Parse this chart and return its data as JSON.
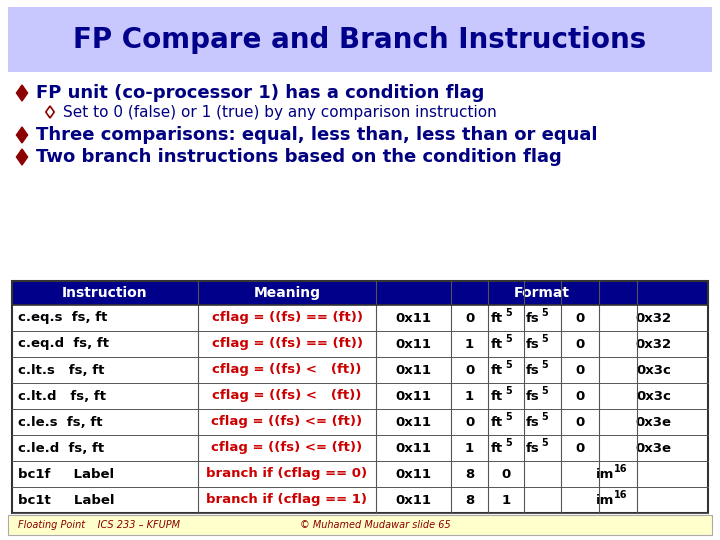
{
  "title": "FP Compare and Branch Instructions",
  "title_bg": "#c8c8ff",
  "title_color": "#00008B",
  "slide_bg": "#f0f0f0",
  "content_bg": "#ffffff",
  "footer_bg": "#ffffcc",
  "footer_text1": "Floating Point    ICS 233 – KFUPM",
  "footer_text2": "© Muhamed Mudawar slide 65",
  "bullet1": "FP unit (co-processor 1) has a condition flag",
  "bullet2": "Set to 0 (false) or 1 (true) by any comparison instruction",
  "bullet3": "Three comparisons: equal, less than, less than or equal",
  "bullet4": "Two branch instructions based on the condition flag",
  "bullet_color": "#000080",
  "table_header_bg": "#00008B",
  "table_header_fg": "#ffffff",
  "table_row_bg": "#ffffff",
  "table_border": "#444444",
  "table_meaning_color": "#cc0000",
  "table_text_color": "#000000",
  "rows": [
    [
      "c.eq.s  fs, ft",
      "cflag = ((fs) == (ft))",
      "0x11",
      "0",
      "ft",
      "5",
      "fs",
      "5",
      "0",
      "0x32"
    ],
    [
      "c.eq.d  fs, ft",
      "cflag = ((fs) == (ft))",
      "0x11",
      "1",
      "ft",
      "5",
      "fs",
      "5",
      "0",
      "0x32"
    ],
    [
      "c.lt.s   fs, ft",
      "cflag = ((fs) <   (ft))",
      "0x11",
      "0",
      "ft",
      "5",
      "fs",
      "5",
      "0",
      "0x3c"
    ],
    [
      "c.lt.d   fs, ft",
      "cflag = ((fs) <   (ft))",
      "0x11",
      "1",
      "ft",
      "5",
      "fs",
      "5",
      "0",
      "0x3c"
    ],
    [
      "c.le.s  fs, ft",
      "cflag = ((fs) <= (ft))",
      "0x11",
      "0",
      "ft",
      "5",
      "fs",
      "5",
      "0",
      "0x3e"
    ],
    [
      "c.le.d  fs, ft",
      "cflag = ((fs) <= (ft))",
      "0x11",
      "1",
      "ft",
      "5",
      "fs",
      "5",
      "0",
      "0x3e"
    ],
    [
      "bc1f     Label",
      "branch if (cflag == 0)",
      "0x11",
      "8",
      "0",
      "",
      "",
      "",
      "",
      ""
    ],
    [
      "bc1t     Label",
      "branch if (cflag == 1)",
      "0x11",
      "8",
      "1",
      "",
      "",
      "",
      "",
      ""
    ]
  ]
}
